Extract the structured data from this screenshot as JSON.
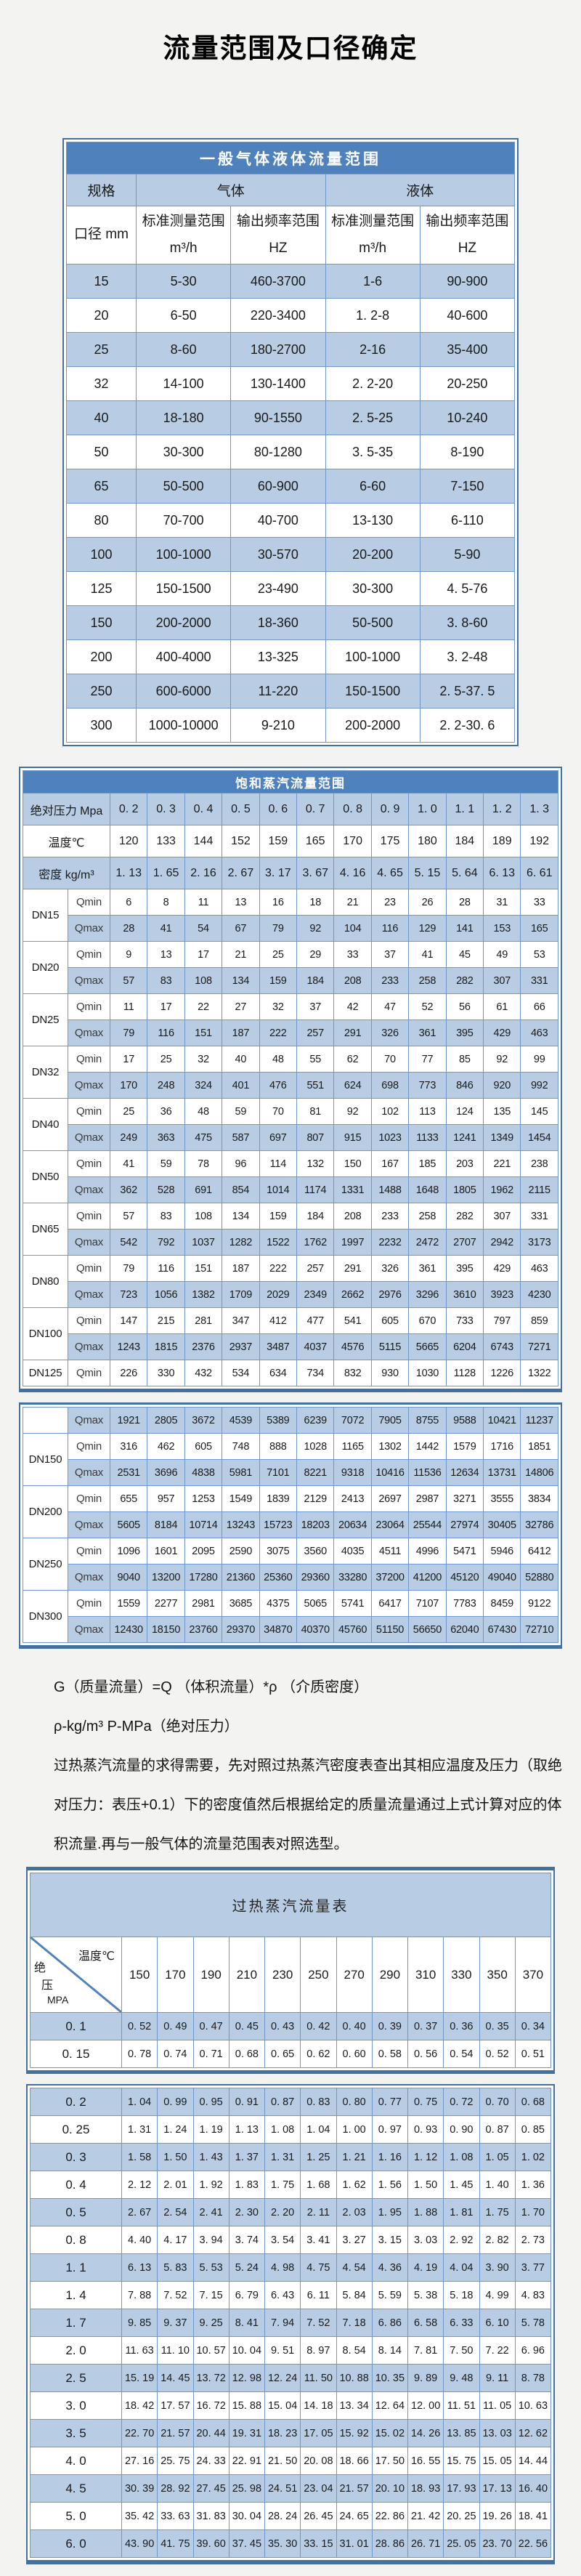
{
  "page_title": "流量范围及口径确定",
  "colors": {
    "header_blue": "#4f81bd",
    "row_light_blue": "#b8cce4",
    "frame_blue": "#44709f",
    "grid_line_blue": "#6f97c9"
  },
  "gas_liquid_table": {
    "title": "一般气体液体流量范围",
    "group_headers": [
      "规格",
      "气体",
      "液体"
    ],
    "sub_headers": [
      "口径 mm",
      "标准测量范围 m³/h",
      "输出频率范围 HZ",
      "标准测量范围 m³/h",
      "输出频率范围 HZ"
    ],
    "rows": [
      [
        "15",
        "5-30",
        "460-3700",
        "1-6",
        "90-900"
      ],
      [
        "20",
        "6-50",
        "220-3400",
        "1. 2-8",
        "40-600"
      ],
      [
        "25",
        "8-60",
        "180-2700",
        "2-16",
        "35-400"
      ],
      [
        "32",
        "14-100",
        "130-1400",
        "2. 2-20",
        "20-250"
      ],
      [
        "40",
        "18-180",
        "90-1550",
        "2. 5-25",
        "10-240"
      ],
      [
        "50",
        "30-300",
        "80-1280",
        "3. 5-35",
        "8-190"
      ],
      [
        "65",
        "50-500",
        "60-900",
        "6-60",
        "7-150"
      ],
      [
        "80",
        "70-700",
        "40-700",
        "13-130",
        "6-110"
      ],
      [
        "100",
        "100-1000",
        "30-570",
        "20-200",
        "5-90"
      ],
      [
        "125",
        "150-1500",
        "23-490",
        "30-300",
        "4. 5-76"
      ],
      [
        "150",
        "200-2000",
        "18-360",
        "50-500",
        "3. 8-60"
      ],
      [
        "200",
        "400-4000",
        "13-325",
        "100-1000",
        "3. 2-48"
      ],
      [
        "250",
        "600-6000",
        "11-220",
        "150-1500",
        "2. 5-37. 5"
      ],
      [
        "300",
        "1000-10000",
        "9-210",
        "200-2000",
        "2. 2-30. 6"
      ]
    ]
  },
  "saturated_table": {
    "title": "饱和蒸汽流量范围",
    "qmin_label": "Qmin",
    "qmax_label": "Qmax",
    "pressure_row": {
      "label": "绝对压力 Mpa",
      "values": [
        "0. 2",
        "0. 3",
        "0. 4",
        "0. 5",
        "0. 6",
        "0. 7",
        "0. 8",
        "0. 9",
        "1. 0",
        "1. 1",
        "1. 2",
        "1. 3"
      ]
    },
    "temp_row": {
      "label": "温度℃",
      "values": [
        "120",
        "133",
        "144",
        "152",
        "159",
        "165",
        "170",
        "175",
        "180",
        "184",
        "189",
        "192"
      ]
    },
    "density_row": {
      "label": "密度 kg/m³",
      "values": [
        "1. 13",
        "1. 65",
        "2. 16",
        "2. 67",
        "3. 17",
        "3. 67",
        "4. 16",
        "4. 65",
        "5. 15",
        "5. 64",
        "6. 13",
        "6. 61"
      ]
    },
    "block1": [
      {
        "dn": "DN15",
        "qmin": [
          "6",
          "8",
          "11",
          "13",
          "16",
          "18",
          "21",
          "23",
          "26",
          "28",
          "31",
          "33"
        ],
        "qmax": [
          "28",
          "41",
          "54",
          "67",
          "79",
          "92",
          "104",
          "116",
          "129",
          "141",
          "153",
          "165"
        ]
      },
      {
        "dn": "DN20",
        "qmin": [
          "9",
          "13",
          "17",
          "21",
          "25",
          "29",
          "33",
          "37",
          "41",
          "45",
          "49",
          "53"
        ],
        "qmax": [
          "57",
          "83",
          "108",
          "134",
          "159",
          "184",
          "208",
          "233",
          "258",
          "282",
          "307",
          "331"
        ]
      },
      {
        "dn": "DN25",
        "qmin": [
          "11",
          "17",
          "22",
          "27",
          "32",
          "37",
          "42",
          "47",
          "52",
          "56",
          "61",
          "66"
        ],
        "qmax": [
          "79",
          "116",
          "151",
          "187",
          "222",
          "257",
          "291",
          "326",
          "361",
          "395",
          "429",
          "463"
        ]
      },
      {
        "dn": "DN32",
        "qmin": [
          "17",
          "25",
          "32",
          "40",
          "48",
          "55",
          "62",
          "70",
          "77",
          "85",
          "92",
          "99"
        ],
        "qmax": [
          "170",
          "248",
          "324",
          "401",
          "476",
          "551",
          "624",
          "698",
          "773",
          "846",
          "920",
          "992"
        ]
      },
      {
        "dn": "DN40",
        "qmin": [
          "25",
          "36",
          "48",
          "59",
          "70",
          "81",
          "92",
          "102",
          "113",
          "124",
          "135",
          "145"
        ],
        "qmax": [
          "249",
          "363",
          "475",
          "587",
          "697",
          "807",
          "915",
          "1023",
          "1133",
          "1241",
          "1349",
          "1454"
        ]
      },
      {
        "dn": "DN50",
        "qmin": [
          "41",
          "59",
          "78",
          "96",
          "114",
          "132",
          "150",
          "167",
          "185",
          "203",
          "221",
          "238"
        ],
        "qmax": [
          "362",
          "528",
          "691",
          "854",
          "1014",
          "1174",
          "1331",
          "1488",
          "1648",
          "1805",
          "1962",
          "2115"
        ]
      },
      {
        "dn": "DN65",
        "qmin": [
          "57",
          "83",
          "108",
          "134",
          "159",
          "184",
          "208",
          "233",
          "258",
          "282",
          "307",
          "331"
        ],
        "qmax": [
          "542",
          "792",
          "1037",
          "1282",
          "1522",
          "1762",
          "1997",
          "2232",
          "2472",
          "2707",
          "2942",
          "3173"
        ]
      },
      {
        "dn": "DN80",
        "qmin": [
          "79",
          "116",
          "151",
          "187",
          "222",
          "257",
          "291",
          "326",
          "361",
          "395",
          "429",
          "463"
        ],
        "qmax": [
          "723",
          "1056",
          "1382",
          "1709",
          "2029",
          "2349",
          "2662",
          "2976",
          "3296",
          "3610",
          "3923",
          "4230"
        ]
      },
      {
        "dn": "DN100",
        "qmin": [
          "147",
          "215",
          "281",
          "347",
          "412",
          "477",
          "541",
          "605",
          "670",
          "733",
          "797",
          "859"
        ],
        "qmax": [
          "1243",
          "1815",
          "2376",
          "2937",
          "3487",
          "4037",
          "4576",
          "5115",
          "5665",
          "6204",
          "6743",
          "7271"
        ]
      },
      {
        "dn": "DN125",
        "qmin": [
          "226",
          "330",
          "432",
          "534",
          "634",
          "734",
          "832",
          "930",
          "1030",
          "1128",
          "1226",
          "1322"
        ]
      }
    ],
    "block2": [
      {
        "dn": "",
        "qmax": [
          "1921",
          "2805",
          "3672",
          "4539",
          "5389",
          "6239",
          "7072",
          "7905",
          "8755",
          "9588",
          "10421",
          "11237"
        ]
      },
      {
        "dn": "DN150",
        "qmin": [
          "316",
          "462",
          "605",
          "748",
          "888",
          "1028",
          "1165",
          "1302",
          "1442",
          "1579",
          "1716",
          "1851"
        ],
        "qmax": [
          "2531",
          "3696",
          "4838",
          "5981",
          "7101",
          "8221",
          "9318",
          "10416",
          "11536",
          "12634",
          "13731",
          "14806"
        ]
      },
      {
        "dn": "DN200",
        "qmin": [
          "655",
          "957",
          "1253",
          "1549",
          "1839",
          "2129",
          "2413",
          "2697",
          "2987",
          "3271",
          "3555",
          "3834"
        ],
        "qmax": [
          "5605",
          "8184",
          "10714",
          "13243",
          "15723",
          "18203",
          "20634",
          "23064",
          "25544",
          "27974",
          "30405",
          "32786"
        ]
      },
      {
        "dn": "DN250",
        "qmin": [
          "1096",
          "1601",
          "2095",
          "2590",
          "3075",
          "3560",
          "4035",
          "4511",
          "4996",
          "5471",
          "5946",
          "6412"
        ],
        "qmax": [
          "9040",
          "13200",
          "17280",
          "21360",
          "25360",
          "29360",
          "33280",
          "37200",
          "41200",
          "45120",
          "49040",
          "52880"
        ]
      },
      {
        "dn": "DN300",
        "qmin": [
          "1559",
          "2277",
          "2981",
          "3685",
          "4375",
          "5065",
          "5741",
          "6417",
          "7107",
          "7783",
          "8459",
          "9122"
        ],
        "qmax": [
          "12430",
          "18150",
          "23760",
          "29370",
          "34870",
          "40370",
          "45760",
          "51150",
          "56650",
          "62040",
          "67430",
          "72710"
        ]
      }
    ]
  },
  "notes": [
    "G（质量流量）=Q （体积流量）*ρ （介质密度）",
    "ρ-kg/m³ P-MPa（绝对压力）",
    "过热蒸汽流量的求得需要，先对照过热蒸汽密度表查出其相应温度及压力（取绝对压力：表压+0.1）下的密度值然后根据给定的质量流量通过上式计算对应的体积流量.再与一般气体的流量范围表对照选型。"
  ],
  "superheated_table": {
    "title": "过热蒸汽流量表",
    "corner": {
      "top": "温度℃",
      "left1": "绝",
      "left2": "压",
      "left3": "MPA"
    },
    "temps": [
      "150",
      "170",
      "190",
      "210",
      "230",
      "250",
      "270",
      "290",
      "310",
      "330",
      "350",
      "370"
    ],
    "block1": [
      {
        "p": "0. 1",
        "v": [
          "0. 52",
          "0. 49",
          "0. 47",
          "0. 45",
          "0. 43",
          "0. 42",
          "0. 40",
          "0. 39",
          "0. 37",
          "0. 36",
          "0. 35",
          "0. 34"
        ]
      },
      {
        "p": "0. 15",
        "v": [
          "0. 78",
          "0. 74",
          "0. 71",
          "0. 68",
          "0. 65",
          "0. 62",
          "0. 60",
          "0. 58",
          "0. 56",
          "0. 54",
          "0. 52",
          "0. 51"
        ]
      }
    ],
    "block2": [
      {
        "p": "0. 2",
        "v": [
          "1. 04",
          "0. 99",
          "0. 95",
          "0. 91",
          "0. 87",
          "0. 83",
          "0. 80",
          "0. 77",
          "0. 75",
          "0. 72",
          "0. 70",
          "0. 68"
        ]
      },
      {
        "p": "0. 25",
        "v": [
          "1. 31",
          "1. 24",
          "1. 19",
          "1. 13",
          "1. 08",
          "1. 04",
          "1. 00",
          "0. 97",
          "0. 93",
          "0. 90",
          "0. 87",
          "0. 85"
        ]
      },
      {
        "p": "0. 3",
        "v": [
          "1. 58",
          "1. 50",
          "1. 43",
          "1. 37",
          "1. 31",
          "1. 25",
          "1. 21",
          "1. 16",
          "1. 12",
          "1. 08",
          "1. 05",
          "1. 02"
        ]
      },
      {
        "p": "0. 4",
        "v": [
          "2. 12",
          "2. 01",
          "1. 92",
          "1. 83",
          "1. 75",
          "1. 68",
          "1. 62",
          "1. 56",
          "1. 50",
          "1. 45",
          "1. 40",
          "1. 36"
        ]
      },
      {
        "p": "0. 5",
        "v": [
          "2. 67",
          "2. 54",
          "2. 41",
          "2. 30",
          "2. 20",
          "2. 11",
          "2. 03",
          "1. 95",
          "1. 88",
          "1. 81",
          "1. 75",
          "1. 70"
        ]
      },
      {
        "p": "0. 8",
        "v": [
          "4. 40",
          "4. 17",
          "3. 94",
          "3. 74",
          "3. 54",
          "3. 41",
          "3. 27",
          "3. 15",
          "3. 03",
          "2. 92",
          "2. 82",
          "2. 73"
        ]
      },
      {
        "p": "1. 1",
        "v": [
          "6. 13",
          "5. 83",
          "5. 53",
          "5. 24",
          "4. 98",
          "4. 75",
          "4. 54",
          "4. 36",
          "4. 19",
          "4. 04",
          "3. 90",
          "3. 77"
        ]
      },
      {
        "p": "1. 4",
        "v": [
          "7. 88",
          "7. 52",
          "7. 15",
          "6. 79",
          "6. 43",
          "6. 11",
          "5. 84",
          "5. 59",
          "5. 38",
          "5. 18",
          "4. 99",
          "4. 83"
        ]
      },
      {
        "p": "1. 7",
        "v": [
          "9. 85",
          "9. 37",
          "9. 25",
          "8. 41",
          "7. 94",
          "7. 52",
          "7. 18",
          "6. 86",
          "6. 58",
          "6. 33",
          "6. 10",
          "5. 78"
        ]
      },
      {
        "p": "2. 0",
        "v": [
          "11. 63",
          "11. 10",
          "10. 57",
          "10. 04",
          "9. 51",
          "8. 97",
          "8. 54",
          "8. 14",
          "7. 81",
          "7. 50",
          "7. 22",
          "6. 96"
        ]
      },
      {
        "p": "2. 5",
        "v": [
          "15. 19",
          "14. 45",
          "13. 72",
          "12. 98",
          "12. 24",
          "11. 50",
          "10. 88",
          "10. 35",
          "9. 89",
          "9. 48",
          "9. 11",
          "8. 78"
        ]
      },
      {
        "p": "3. 0",
        "v": [
          "18. 42",
          "17. 57",
          "16. 72",
          "15. 88",
          "15. 04",
          "14. 18",
          "13. 34",
          "12. 64",
          "12. 00",
          "11. 51",
          "11. 05",
          "10. 63"
        ]
      },
      {
        "p": "3. 5",
        "v": [
          "22. 70",
          "21. 57",
          "20. 44",
          "19. 31",
          "18. 23",
          "17. 05",
          "15. 92",
          "15. 02",
          "14. 26",
          "13. 85",
          "13. 03",
          "12. 62"
        ]
      },
      {
        "p": "4. 0",
        "v": [
          "27. 16",
          "25. 75",
          "24. 33",
          "22. 91",
          "21. 50",
          "20. 08",
          "18. 66",
          "17. 50",
          "16. 55",
          "15. 75",
          "15. 05",
          "14. 44"
        ]
      },
      {
        "p": "4. 5",
        "v": [
          "30. 39",
          "28. 92",
          "27. 45",
          "25. 98",
          "24. 51",
          "23. 04",
          "21. 57",
          "20. 10",
          "18. 93",
          "17. 93",
          "17. 13",
          "16. 40"
        ]
      },
      {
        "p": "5. 0",
        "v": [
          "35. 42",
          "33. 63",
          "31. 83",
          "30. 04",
          "28. 24",
          "26. 45",
          "24. 65",
          "22. 86",
          "21. 42",
          "20. 25",
          "19. 26",
          "18. 41"
        ]
      },
      {
        "p": "6. 0",
        "v": [
          "43. 90",
          "41. 75",
          "39. 60",
          "37. 45",
          "35. 30",
          "33. 15",
          "31. 01",
          "28. 86",
          "26. 71",
          "25. 05",
          "23. 70",
          "22. 56"
        ]
      }
    ]
  }
}
